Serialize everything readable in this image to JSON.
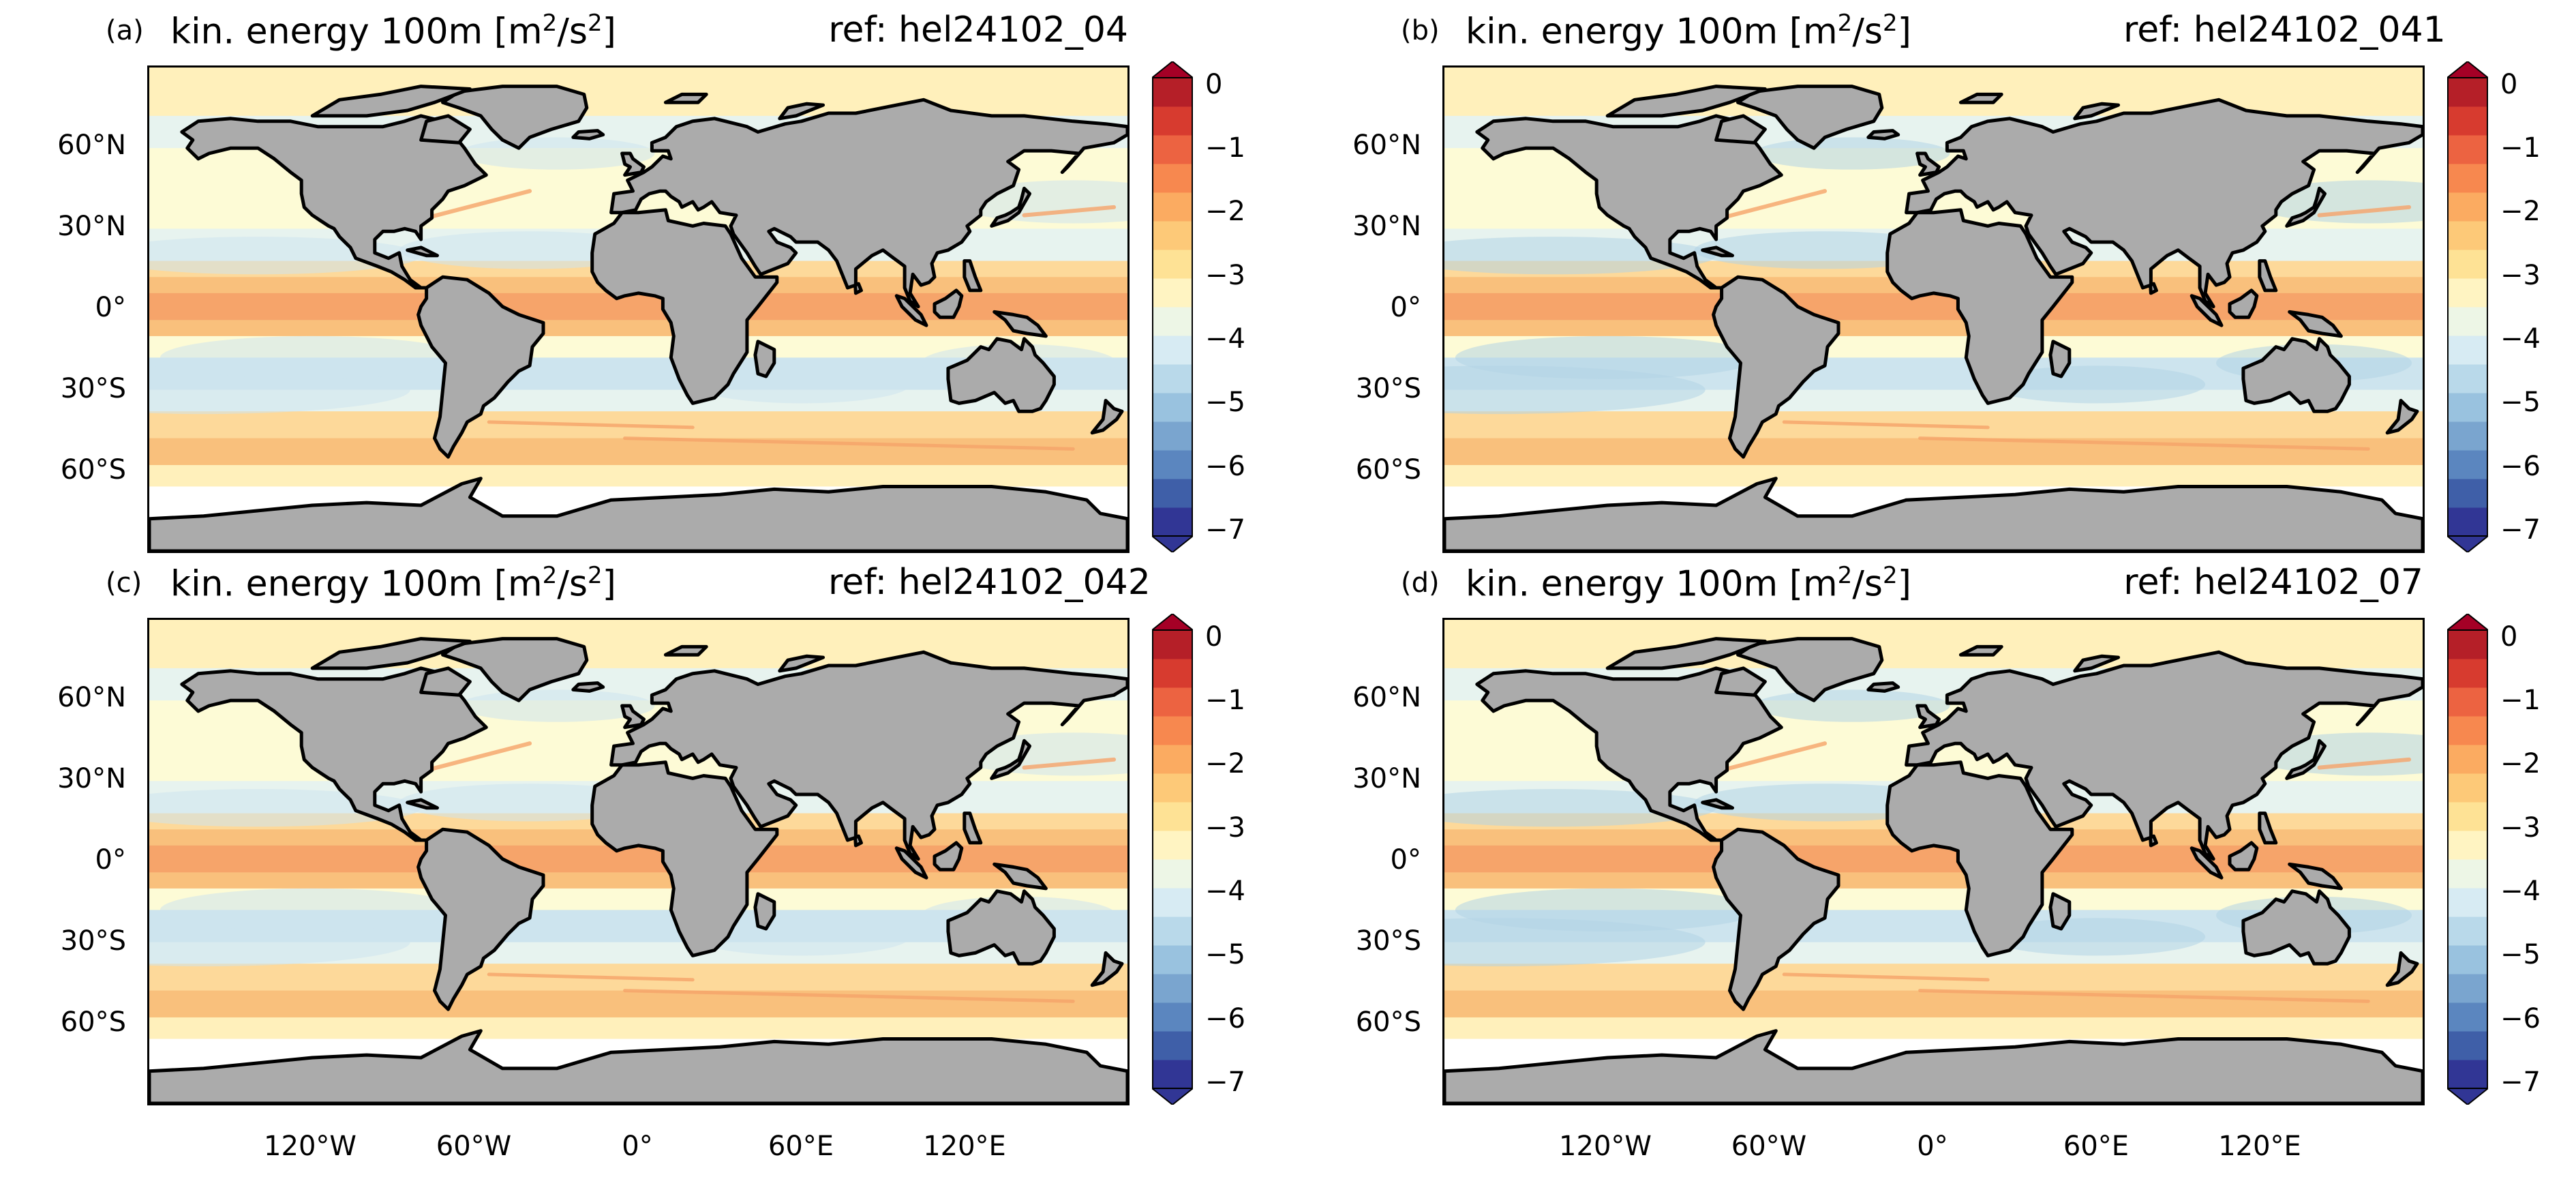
{
  "colors": {
    "land": "#ababab",
    "ice": "#ffffff",
    "colorbar_levels": [
      "#313695",
      "#3f5fa8",
      "#5b86bf",
      "#7aa5cf",
      "#99c2df",
      "#b9d9ea",
      "#d7ebf3",
      "#edf6e6",
      "#fff4c2",
      "#fee295",
      "#fdc978",
      "#fbab61",
      "#f7884f",
      "#ec6341",
      "#d73b2f",
      "#b51f28"
    ],
    "ocean_bands": [
      "#f6a46a",
      "#f9c07c",
      "#fdd99a",
      "#fff0bb",
      "#fdfbd6",
      "#e7f3ef",
      "#cde4ee",
      "#b2d3e6",
      "#8fbbd9"
    ]
  },
  "icons": {
    "colorbar_top": "triangle-up",
    "colorbar_bottom": "triangle-down"
  },
  "panels": [
    {
      "label": "(a)",
      "title_main": "kin. energy 100m [m",
      "title_sup1": "2",
      "title_mid": "/s",
      "title_sup2": "2",
      "title_end": "]",
      "ref": "ref: hel24102_04"
    },
    {
      "label": "(b)",
      "title_main": "kin. energy 100m [m",
      "title_sup1": "2",
      "title_mid": "/s",
      "title_sup2": "2",
      "title_end": "]",
      "ref": "ref: hel24102_041"
    },
    {
      "label": "(c)",
      "title_main": "kin. energy 100m [m",
      "title_sup1": "2",
      "title_mid": "/s",
      "title_sup2": "2",
      "title_end": "]",
      "ref": "ref: hel24102_042"
    },
    {
      "label": "(d)",
      "title_main": "kin. energy 100m [m",
      "title_sup1": "2",
      "title_mid": "/s",
      "title_sup2": "2",
      "title_end": "]",
      "ref": "ref: hel24102_07"
    }
  ],
  "axes": {
    "lat_labels": [
      "60°N",
      "30°N",
      "0°",
      "30°S",
      "60°S"
    ],
    "lon_labels": [
      "120°W",
      "60°W",
      "0°",
      "60°E",
      "120°E"
    ],
    "lon_range": [
      -180,
      180
    ],
    "lat_range": [
      -90,
      90
    ]
  },
  "colorbar": {
    "ticks": [
      "0",
      "−1",
      "−2",
      "−3",
      "−4",
      "−5",
      "−6",
      "−7"
    ],
    "range": [
      -7,
      0
    ],
    "extend": "both"
  }
}
